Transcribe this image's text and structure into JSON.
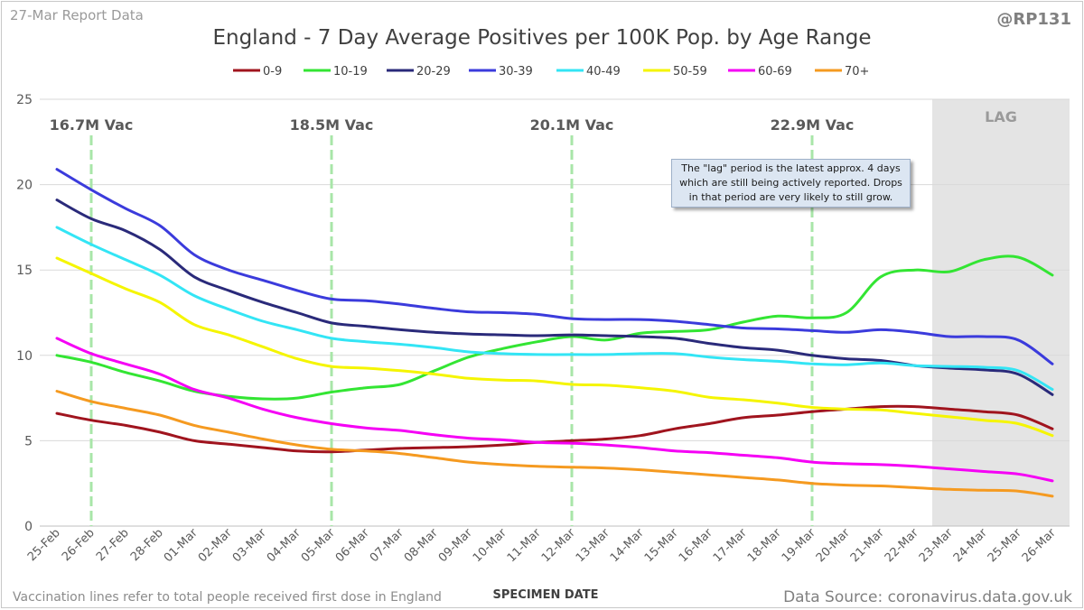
{
  "header": {
    "report_label": "27-Mar Report Data",
    "handle": "@RP131"
  },
  "footer": {
    "note": "Vaccination lines refer to total people received first dose in England",
    "source": "Data Source: coronavirus.data.gov.uk"
  },
  "annotation": {
    "lag_note": "The \"lag\" period is the latest approx. 4 days which are still being actively reported. Drops in that period are very likely to still grow."
  },
  "chart_data": {
    "type": "line",
    "title": "England - 7 Day Average Positives per 100K Pop. by Age Range",
    "xlabel": "SPECIMEN DATE",
    "ylabel": "",
    "ylim": [
      0,
      25
    ],
    "yticks": [
      0,
      5,
      10,
      15,
      20,
      25
    ],
    "grid": "horizontal",
    "legend_position": "top",
    "categories": [
      "25-Feb",
      "26-Feb",
      "27-Feb",
      "28-Feb",
      "01-Mar",
      "02-Mar",
      "03-Mar",
      "04-Mar",
      "05-Mar",
      "06-Mar",
      "07-Mar",
      "08-Mar",
      "09-Mar",
      "10-Mar",
      "11-Mar",
      "12-Mar",
      "13-Mar",
      "14-Mar",
      "15-Mar",
      "16-Mar",
      "17-Mar",
      "18-Mar",
      "19-Mar",
      "20-Mar",
      "21-Mar",
      "22-Mar",
      "23-Mar",
      "24-Mar",
      "25-Mar",
      "26-Mar"
    ],
    "series": [
      {
        "name": "0-9",
        "color": "#a0141e",
        "values": [
          6.6,
          6.2,
          5.9,
          5.5,
          5.0,
          4.8,
          4.6,
          4.4,
          4.35,
          4.45,
          4.55,
          4.6,
          4.65,
          4.75,
          4.9,
          5.0,
          5.1,
          5.3,
          5.7,
          6.0,
          6.35,
          6.5,
          6.7,
          6.85,
          7.0,
          7.0,
          6.85,
          6.7,
          6.5,
          5.7
        ]
      },
      {
        "name": "10-19",
        "color": "#33e533",
        "values": [
          10.0,
          9.6,
          9.0,
          8.5,
          7.9,
          7.6,
          7.45,
          7.5,
          7.85,
          8.1,
          8.3,
          9.1,
          9.9,
          10.4,
          10.8,
          11.1,
          10.9,
          11.3,
          11.4,
          11.5,
          11.95,
          12.3,
          12.2,
          12.5,
          14.6,
          15.0,
          14.9,
          15.6,
          15.75,
          14.7
        ]
      },
      {
        "name": "20-29",
        "color": "#2a2a7a",
        "values": [
          19.1,
          18.0,
          17.3,
          16.2,
          14.6,
          13.8,
          13.1,
          12.5,
          11.9,
          11.7,
          11.5,
          11.35,
          11.25,
          11.2,
          11.15,
          11.2,
          11.15,
          11.1,
          11.0,
          10.7,
          10.45,
          10.3,
          10.0,
          9.8,
          9.7,
          9.4,
          9.25,
          9.15,
          8.9,
          7.7
        ]
      },
      {
        "name": "30-39",
        "color": "#3b3bdc",
        "values": [
          20.9,
          19.7,
          18.6,
          17.6,
          15.9,
          15.0,
          14.4,
          13.8,
          13.3,
          13.2,
          13.0,
          12.75,
          12.55,
          12.5,
          12.4,
          12.15,
          12.1,
          12.1,
          12.0,
          11.8,
          11.6,
          11.55,
          11.45,
          11.35,
          11.5,
          11.35,
          11.1,
          11.1,
          10.9,
          9.5
        ]
      },
      {
        "name": "40-49",
        "color": "#33e5f5",
        "values": [
          17.5,
          16.5,
          15.6,
          14.7,
          13.5,
          12.7,
          12.0,
          11.5,
          11.0,
          10.8,
          10.65,
          10.45,
          10.2,
          10.1,
          10.05,
          10.05,
          10.05,
          10.1,
          10.1,
          9.9,
          9.75,
          9.65,
          9.5,
          9.45,
          9.55,
          9.4,
          9.35,
          9.3,
          9.1,
          8.0
        ]
      },
      {
        "name": "50-59",
        "color": "#f5f500",
        "values": [
          15.7,
          14.8,
          13.9,
          13.1,
          11.8,
          11.2,
          10.5,
          9.8,
          9.35,
          9.25,
          9.1,
          8.9,
          8.65,
          8.55,
          8.5,
          8.3,
          8.25,
          8.1,
          7.9,
          7.55,
          7.4,
          7.2,
          6.95,
          6.85,
          6.8,
          6.6,
          6.4,
          6.2,
          6.0,
          5.3
        ]
      },
      {
        "name": "60-69",
        "color": "#f500f5",
        "values": [
          11.0,
          10.1,
          9.5,
          8.9,
          8.0,
          7.5,
          6.85,
          6.35,
          6.0,
          5.75,
          5.6,
          5.35,
          5.15,
          5.05,
          4.9,
          4.85,
          4.75,
          4.6,
          4.4,
          4.3,
          4.15,
          4.0,
          3.75,
          3.65,
          3.6,
          3.5,
          3.35,
          3.2,
          3.05,
          2.65
        ]
      },
      {
        "name": "70+",
        "color": "#f59a20",
        "values": [
          7.9,
          7.3,
          6.9,
          6.5,
          5.9,
          5.5,
          5.1,
          4.75,
          4.5,
          4.4,
          4.25,
          4.0,
          3.75,
          3.6,
          3.5,
          3.45,
          3.4,
          3.3,
          3.15,
          3.0,
          2.85,
          2.7,
          2.5,
          2.4,
          2.35,
          2.25,
          2.15,
          2.1,
          2.05,
          1.75
        ]
      }
    ],
    "vaccination_markers": [
      {
        "label": "16.7M Vac",
        "position": 1.5
      },
      {
        "label": "18.5M Vac",
        "position": 8.5
      },
      {
        "label": "20.1M Vac",
        "position": 15.5
      },
      {
        "label": "22.9M Vac",
        "position": 22.5
      }
    ],
    "lag_region": {
      "label": "LAG",
      "from": 26,
      "to": 30
    }
  }
}
